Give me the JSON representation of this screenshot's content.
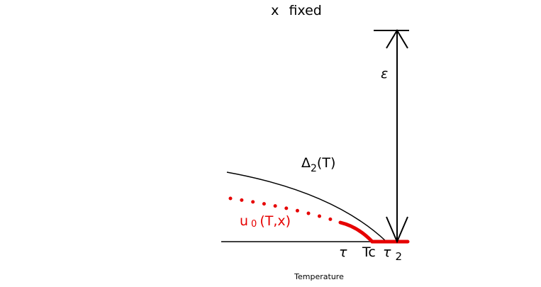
{
  "title": "x fixed",
  "labels": {
    "epsilon": "ε",
    "delta": {
      "main": "Δ",
      "sub": "2",
      "rest": "(T)"
    },
    "u": {
      "main": "u",
      "sub": "0",
      "rest": "(T,x)"
    },
    "tau": "τ",
    "tc": "Tc",
    "tau2": {
      "main": "τ",
      "sub": "2"
    }
  },
  "x_axis_label": "Temperature"
}
